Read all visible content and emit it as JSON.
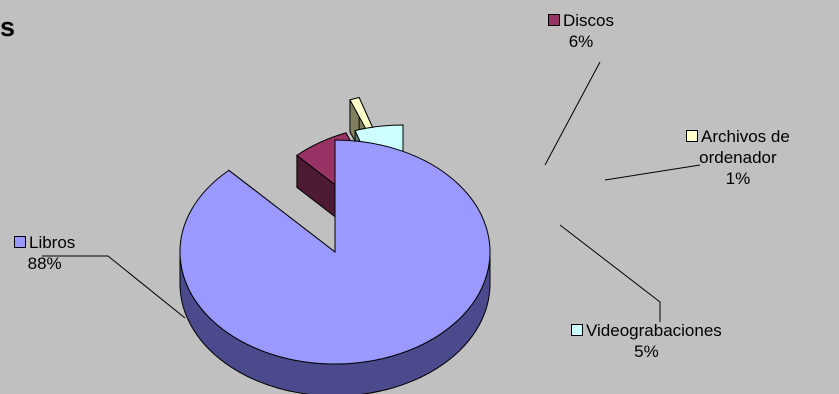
{
  "title_fragment": "s",
  "chart_data": {
    "type": "pie",
    "three_d": true,
    "exploded": true,
    "title": "",
    "legend": "inline-labels",
    "slices": [
      {
        "label": "Libros",
        "percent": "88%",
        "value": 88,
        "color": "#9999ff",
        "side_color": "#4a4a8c"
      },
      {
        "label": "Discos",
        "percent": "6%",
        "value": 6,
        "color": "#993366",
        "side_color": "#4d1a33"
      },
      {
        "label": "Archivos de ordenador",
        "label_line1": "Archivos de",
        "label_line2": "ordenador",
        "percent": "1%",
        "value": 1,
        "color": "#ffffcc",
        "side_color": "#808060"
      },
      {
        "label": "Videograbaciones",
        "percent": "5%",
        "value": 5,
        "color": "#ccffff",
        "side_color": "#608080"
      }
    ]
  }
}
